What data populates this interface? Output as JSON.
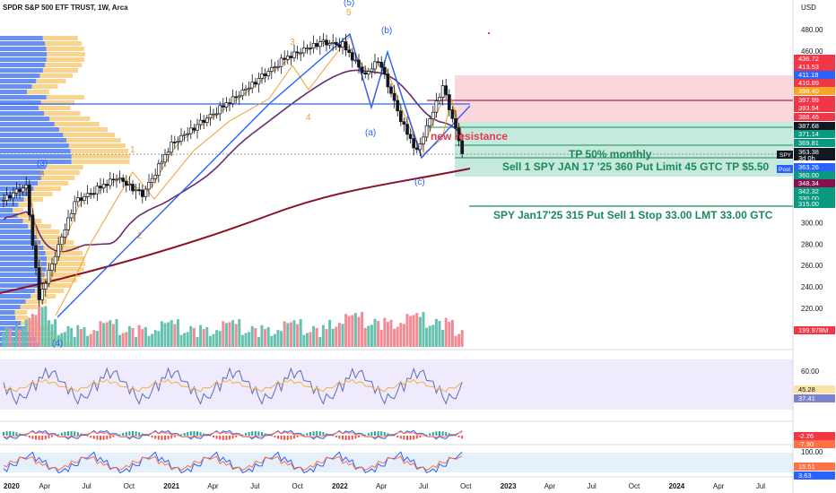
{
  "header": {
    "title": "SPDR S&P 500 ETF TRUST, 1W, Arca"
  },
  "axis": {
    "currency": "USD",
    "price_ticks": [
      "480.00",
      "460.00",
      "300.00",
      "280.00",
      "260.00",
      "240.00",
      "220.00",
      "200.00"
    ],
    "time_ticks": [
      "2020",
      "Apr",
      "Jul",
      "Oct",
      "2021",
      "Apr",
      "Jul",
      "Oct",
      "2022",
      "Apr",
      "Jul",
      "Oct",
      "2023",
      "Apr",
      "Jul",
      "Oct",
      "2024",
      "Apr",
      "Jul"
    ]
  },
  "price_badges": [
    {
      "text": "436.72",
      "color": "#f23645"
    },
    {
      "text": "413.53",
      "color": "#f23645"
    },
    {
      "text": "411.18",
      "color": "#2962ff"
    },
    {
      "text": "410.89",
      "color": "#f23645"
    },
    {
      "text": "398.40",
      "color": "#f5a623"
    },
    {
      "text": "397.99",
      "color": "#f23645"
    },
    {
      "text": "393.94",
      "color": "#f23645"
    },
    {
      "text": "388.46",
      "color": "#f23645"
    },
    {
      "text": "387.68",
      "color": "#131722"
    },
    {
      "text": "371.14",
      "color": "#089981"
    },
    {
      "text": "369.81",
      "color": "#089981"
    },
    {
      "text": "363.38",
      "color": "#131722"
    },
    {
      "text": "3d 0h",
      "color": "#131722"
    },
    {
      "text": "363.26",
      "color": "#2962ff"
    },
    {
      "text": "360.00",
      "color": "#089981"
    },
    {
      "text": "348.34",
      "color": "#880e4f"
    },
    {
      "text": "342.32",
      "color": "#089981"
    },
    {
      "text": "330.00",
      "color": "#089981"
    },
    {
      "text": "315.00",
      "color": "#089981"
    },
    {
      "text": "199.978M",
      "color": "#f23645"
    }
  ],
  "tags": {
    "symbol": "SPY",
    "post": "Post"
  },
  "annotations": {
    "wave_5_top": "(5)",
    "wave_5_sub": "5",
    "wave_b": "(b)",
    "wave_3": "3",
    "wave_4": "4",
    "wave_a": "(a)",
    "wave_c": "(c)",
    "wave_1": "1",
    "wave_3_paren": "(3)",
    "wave_5_left": "5",
    "wave_2": "2",
    "wave_4_paren": "(4)",
    "new_resistance": "new resistance",
    "tp_monthly": "TP 50% monthly",
    "sell_put_360": "Sell 1 SPY JAN 17 '25 360 Put Limit 45 GTC TP $5.50",
    "sell_put_315": "SPY Jan17'25 315 Put Sell 1 Stop 33.00 LMT 33.00 GTC"
  },
  "rsi": {
    "ticks": [
      "60.00"
    ],
    "values": [
      "45.28",
      "37.41"
    ]
  },
  "macd": {
    "values": [
      "-2.26",
      "-7.90"
    ]
  },
  "stoch": {
    "ticks": [
      "100.00"
    ],
    "values": [
      "15.51",
      "3.63"
    ]
  },
  "chart_data": {
    "type": "candlestick",
    "title": "SPDR S&P 500 ETF TRUST, 1W, Arca",
    "ylabel": "USD",
    "ylim": [
      196,
      492
    ],
    "price_ticks": [
      480,
      460,
      300,
      280,
      260,
      240,
      220,
      200
    ],
    "x_ticks": [
      "2020",
      "Apr",
      "Jul",
      "Oct",
      "2021",
      "Apr",
      "Jul",
      "Oct",
      "2022",
      "Apr",
      "Jul",
      "Oct",
      "2023",
      "Apr",
      "Jul",
      "Oct",
      "2024",
      "Apr",
      "Jul"
    ],
    "key_points": [
      {
        "date": "2020-02-21",
        "close": 334
      },
      {
        "date": "2020-03-20",
        "close": 229
      },
      {
        "date": "2020-06-05",
        "close": 319
      },
      {
        "date": "2020-09-04",
        "close": 342
      },
      {
        "date": "2020-10-30",
        "close": 326
      },
      {
        "date": "2021-01-01",
        "close": 373
      },
      {
        "date": "2021-06-04",
        "close": 422
      },
      {
        "date": "2021-09-03",
        "close": 453
      },
      {
        "date": "2021-11-19",
        "close": 468
      },
      {
        "date": "2022-01-07",
        "close": 466
      },
      {
        "date": "2022-02-25",
        "close": 437
      },
      {
        "date": "2022-03-25",
        "close": 452
      },
      {
        "date": "2022-05-20",
        "close": 389
      },
      {
        "date": "2022-06-17",
        "close": 366
      },
      {
        "date": "2022-08-12",
        "close": 427
      },
      {
        "date": "2022-09-23",
        "close": 367
      }
    ],
    "last_price": 363.38,
    "levels": [
      {
        "label": "new resistance",
        "value": 398
      },
      {
        "label": "TP 50% monthly",
        "value": 371
      },
      {
        "label": "360 put",
        "value": 360
      },
      {
        "label": "315 put",
        "value": 315
      }
    ],
    "indicators": [
      "volume",
      "RSI",
      "MACD",
      "Stochastic RSI"
    ]
  }
}
